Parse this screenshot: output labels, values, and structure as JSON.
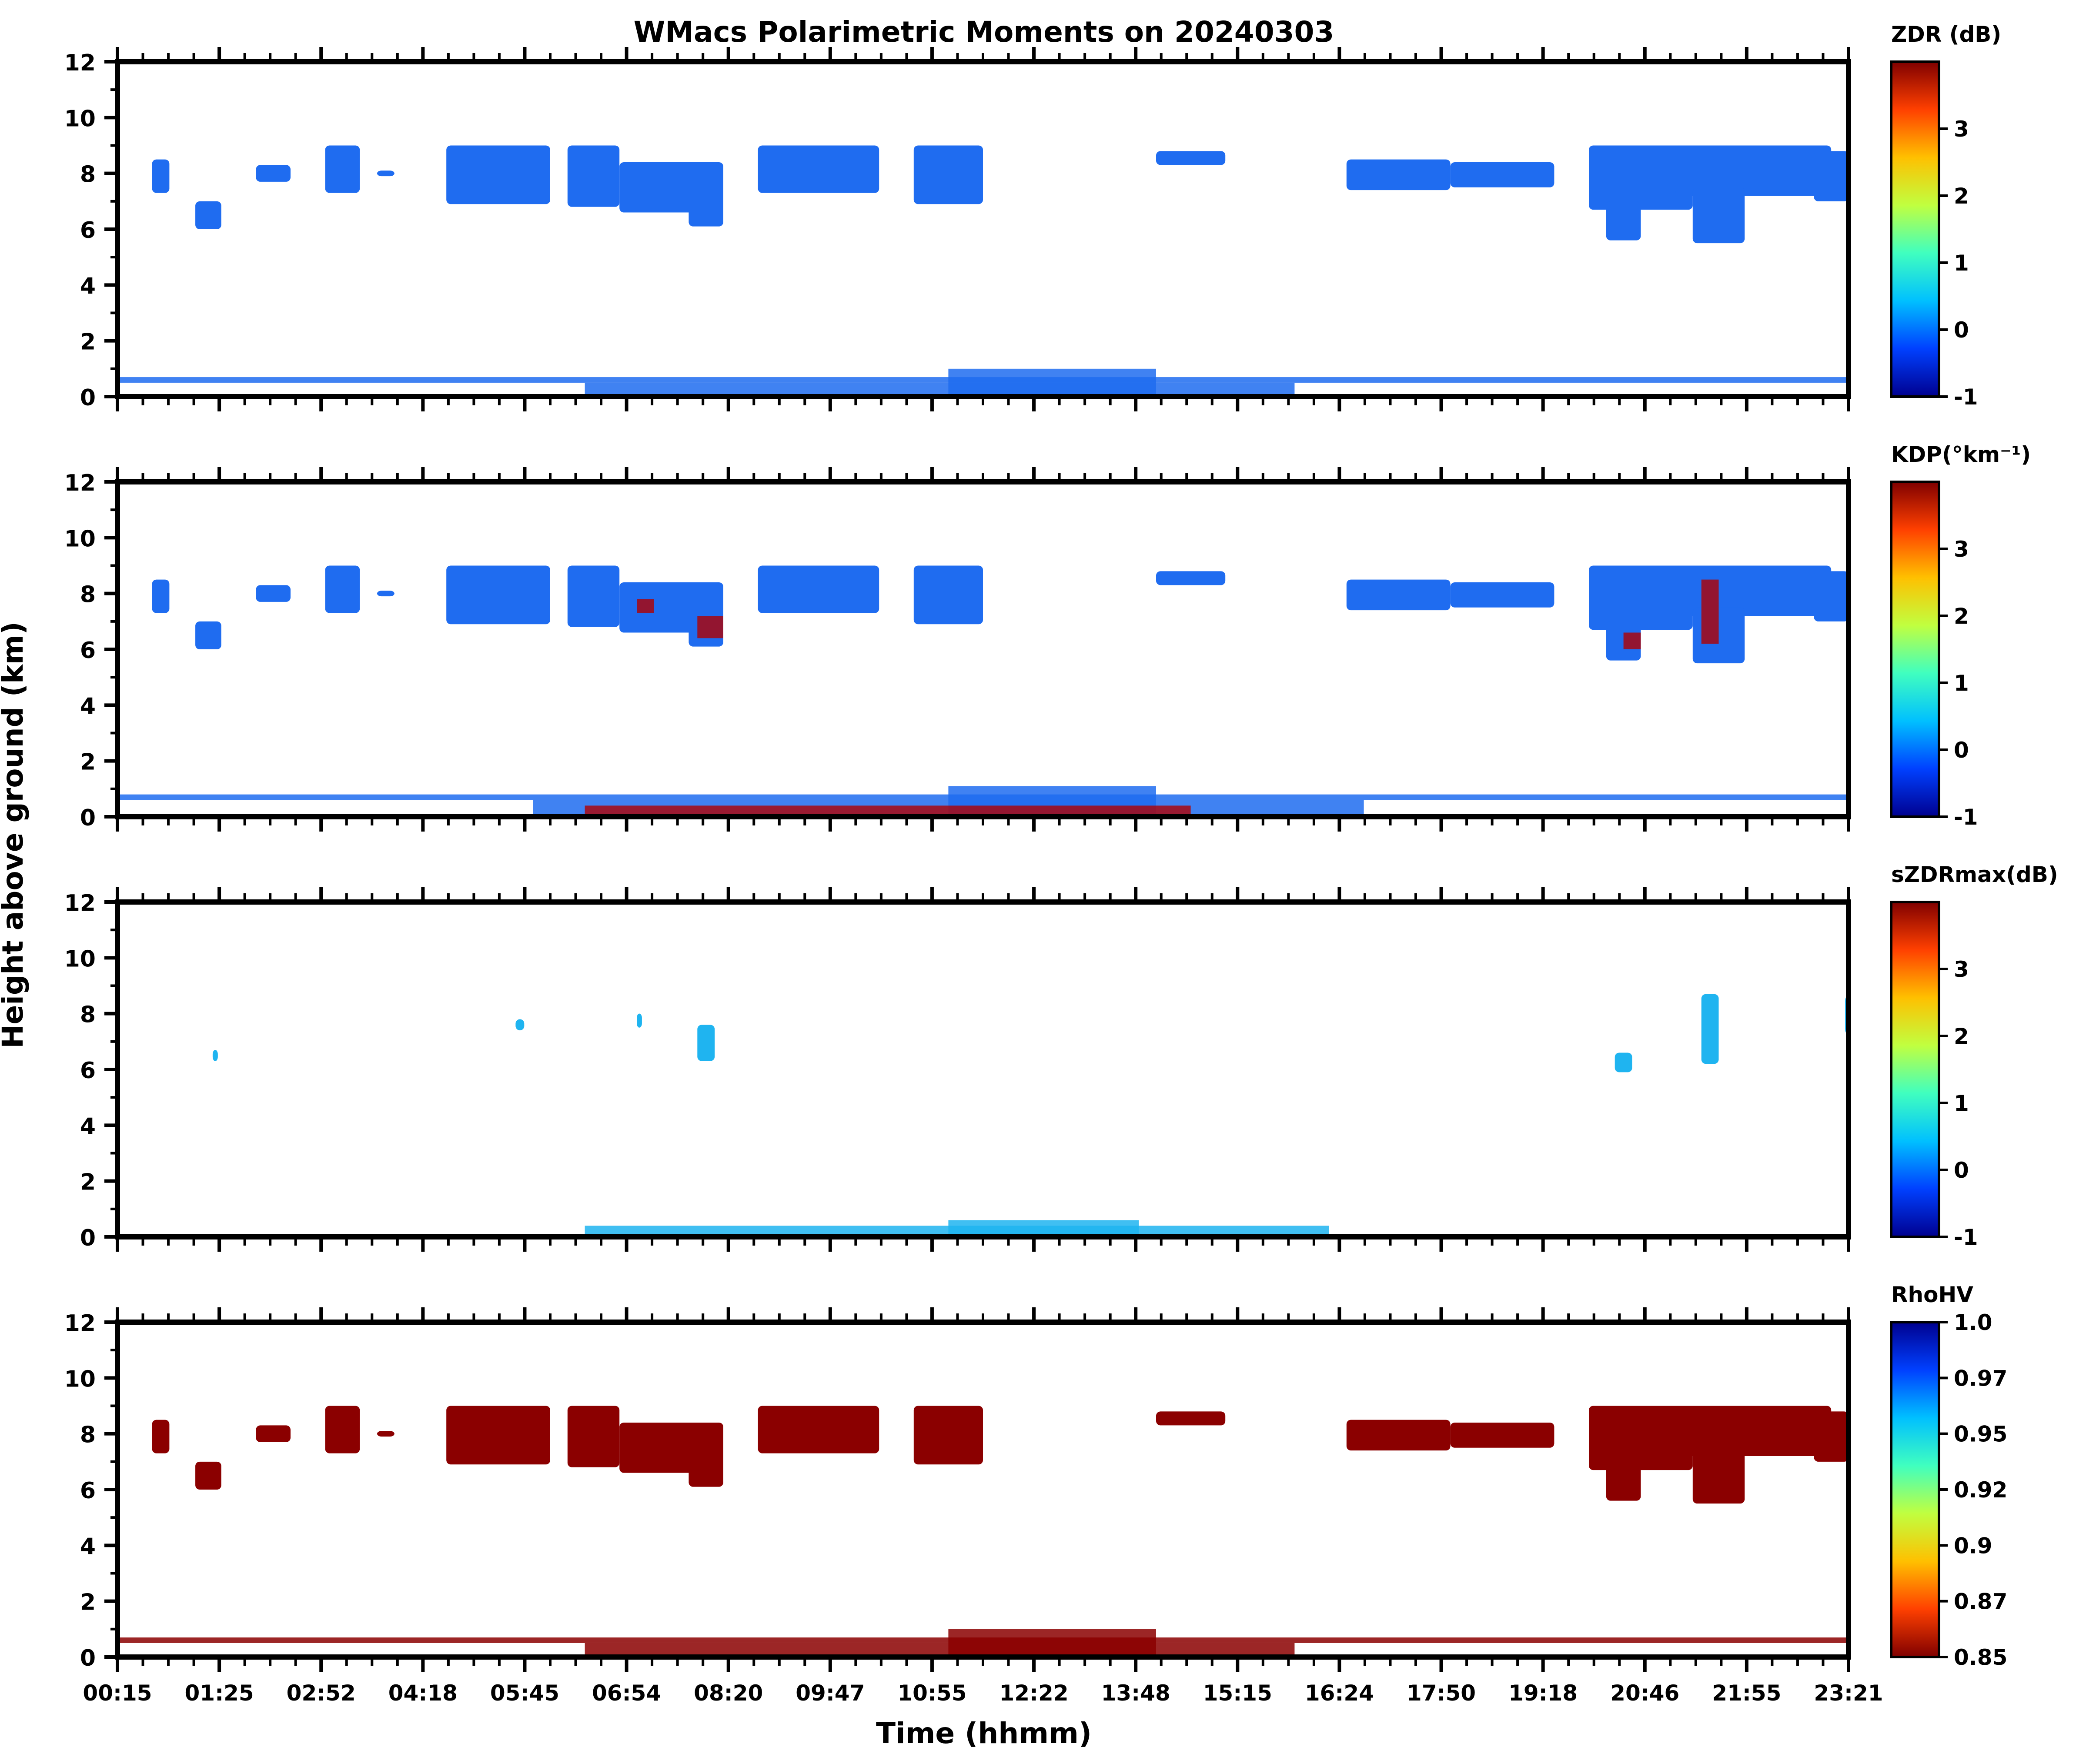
{
  "chart_data": {
    "type": "heatmap",
    "title": "WMacs Polarimetric Moments on 20240303",
    "xlabel": "Time (hhmm)",
    "ylabel": "Height above ground (km)",
    "x_ticklabels": [
      "00:15",
      "01:25",
      "02:52",
      "04:18",
      "05:45",
      "06:54",
      "08:20",
      "09:47",
      "10:55",
      "12:22",
      "13:48",
      "15:15",
      "16:24",
      "17:50",
      "19:18",
      "20:46",
      "21:55",
      "23:21"
    ],
    "y_ticks": [
      0,
      2,
      4,
      6,
      8,
      10,
      12
    ],
    "ylim": [
      0,
      12
    ],
    "panels": [
      {
        "variable": "ZDR",
        "colorbar_label": "ZDR (dB)",
        "colorbar_ticks": [
          "3",
          "2",
          "1",
          "0",
          "-1"
        ],
        "colorbar_range": [
          -1,
          4
        ],
        "colormap": [
          "#00008f",
          "#0040ff",
          "#00c0ff",
          "#40ffbf",
          "#c0ff40",
          "#ffc000",
          "#ff4000",
          "#800000"
        ],
        "echo_color": "#1f6cf0",
        "cloud_regions": [
          {
            "t_start": 0.02,
            "t_end": 0.03,
            "h_bottom": 7.3,
            "h_top": 8.5
          },
          {
            "t_start": 0.045,
            "t_end": 0.06,
            "h_bottom": 6.0,
            "h_top": 7.0
          },
          {
            "t_start": 0.08,
            "t_end": 0.1,
            "h_bottom": 7.7,
            "h_top": 8.3
          },
          {
            "t_start": 0.12,
            "t_end": 0.14,
            "h_bottom": 7.3,
            "h_top": 9.0
          },
          {
            "t_start": 0.15,
            "t_end": 0.16,
            "h_bottom": 7.9,
            "h_top": 8.1
          },
          {
            "t_start": 0.19,
            "t_end": 0.25,
            "h_bottom": 6.9,
            "h_top": 9.0
          },
          {
            "t_start": 0.26,
            "t_end": 0.29,
            "h_bottom": 6.8,
            "h_top": 9.0
          },
          {
            "t_start": 0.29,
            "t_end": 0.35,
            "h_bottom": 6.6,
            "h_top": 8.4
          },
          {
            "t_start": 0.33,
            "t_end": 0.35,
            "h_bottom": 6.1,
            "h_top": 7.0
          },
          {
            "t_start": 0.37,
            "t_end": 0.44,
            "h_bottom": 7.3,
            "h_top": 9.0
          },
          {
            "t_start": 0.46,
            "t_end": 0.5,
            "h_bottom": 6.9,
            "h_top": 9.0
          },
          {
            "t_start": 0.6,
            "t_end": 0.64,
            "h_bottom": 8.3,
            "h_top": 8.8
          },
          {
            "t_start": 0.71,
            "t_end": 0.77,
            "h_bottom": 7.4,
            "h_top": 8.5
          },
          {
            "t_start": 0.77,
            "t_end": 0.83,
            "h_bottom": 7.5,
            "h_top": 8.4
          },
          {
            "t_start": 0.85,
            "t_end": 0.91,
            "h_bottom": 6.7,
            "h_top": 9.0
          },
          {
            "t_start": 0.86,
            "t_end": 0.88,
            "h_bottom": 5.6,
            "h_top": 7.0
          },
          {
            "t_start": 0.9,
            "t_end": 0.99,
            "h_bottom": 7.2,
            "h_top": 9.0
          },
          {
            "t_start": 0.91,
            "t_end": 0.94,
            "h_bottom": 5.5,
            "h_top": 7.5
          },
          {
            "t_start": 0.98,
            "t_end": 1.0,
            "h_bottom": 7.0,
            "h_top": 8.8
          }
        ],
        "near_surface_echo": [
          {
            "t_start": 0.0,
            "t_end": 1.0,
            "h_bottom": 0.5,
            "h_top": 0.7
          },
          {
            "t_start": 0.27,
            "t_end": 0.68,
            "h_bottom": 0.0,
            "h_top": 0.5
          },
          {
            "t_start": 0.48,
            "t_end": 0.6,
            "h_bottom": 0.0,
            "h_top": 1.0
          }
        ]
      },
      {
        "variable": "KDP",
        "colorbar_label": "KDP(°km⁻¹)",
        "colorbar_ticks": [
          "3",
          "2",
          "1",
          "0",
          "-1"
        ],
        "colorbar_range": [
          -1,
          4
        ],
        "colormap": [
          "#00008f",
          "#0040ff",
          "#00c0ff",
          "#40ffbf",
          "#c0ff40",
          "#ffc000",
          "#ff4000",
          "#800000"
        ],
        "echo_color": "#1f6cf0",
        "cloud_regions": [
          {
            "t_start": 0.02,
            "t_end": 0.03,
            "h_bottom": 7.3,
            "h_top": 8.5
          },
          {
            "t_start": 0.045,
            "t_end": 0.06,
            "h_bottom": 6.0,
            "h_top": 7.0
          },
          {
            "t_start": 0.08,
            "t_end": 0.1,
            "h_bottom": 7.7,
            "h_top": 8.3
          },
          {
            "t_start": 0.12,
            "t_end": 0.14,
            "h_bottom": 7.3,
            "h_top": 9.0
          },
          {
            "t_start": 0.15,
            "t_end": 0.16,
            "h_bottom": 7.9,
            "h_top": 8.1
          },
          {
            "t_start": 0.19,
            "t_end": 0.25,
            "h_bottom": 6.9,
            "h_top": 9.0
          },
          {
            "t_start": 0.26,
            "t_end": 0.29,
            "h_bottom": 6.8,
            "h_top": 9.0
          },
          {
            "t_start": 0.29,
            "t_end": 0.35,
            "h_bottom": 6.6,
            "h_top": 8.4
          },
          {
            "t_start": 0.33,
            "t_end": 0.35,
            "h_bottom": 6.1,
            "h_top": 7.0
          },
          {
            "t_start": 0.37,
            "t_end": 0.44,
            "h_bottom": 7.3,
            "h_top": 9.0
          },
          {
            "t_start": 0.46,
            "t_end": 0.5,
            "h_bottom": 6.9,
            "h_top": 9.0
          },
          {
            "t_start": 0.6,
            "t_end": 0.64,
            "h_bottom": 8.3,
            "h_top": 8.8
          },
          {
            "t_start": 0.71,
            "t_end": 0.77,
            "h_bottom": 7.4,
            "h_top": 8.5
          },
          {
            "t_start": 0.77,
            "t_end": 0.83,
            "h_bottom": 7.5,
            "h_top": 8.4
          },
          {
            "t_start": 0.85,
            "t_end": 0.91,
            "h_bottom": 6.7,
            "h_top": 9.0
          },
          {
            "t_start": 0.86,
            "t_end": 0.88,
            "h_bottom": 5.6,
            "h_top": 7.0
          },
          {
            "t_start": 0.9,
            "t_end": 0.99,
            "h_bottom": 7.2,
            "h_top": 9.0
          },
          {
            "t_start": 0.91,
            "t_end": 0.94,
            "h_bottom": 5.5,
            "h_top": 7.5
          },
          {
            "t_start": 0.98,
            "t_end": 1.0,
            "h_bottom": 7.0,
            "h_top": 8.8
          }
        ],
        "near_surface_echo": [
          {
            "t_start": 0.0,
            "t_end": 1.0,
            "h_bottom": 0.6,
            "h_top": 0.8
          },
          {
            "t_start": 0.24,
            "t_end": 0.72,
            "h_bottom": 0.0,
            "h_top": 0.6
          },
          {
            "t_start": 0.48,
            "t_end": 0.6,
            "h_bottom": 0.0,
            "h_top": 1.1
          }
        ],
        "high_value_cells": [
          {
            "t_start": 0.3,
            "t_end": 0.31,
            "h_bottom": 7.3,
            "h_top": 7.8
          },
          {
            "t_start": 0.335,
            "t_end": 0.35,
            "h_bottom": 6.4,
            "h_top": 7.2
          },
          {
            "t_start": 0.87,
            "t_end": 0.88,
            "h_bottom": 6.0,
            "h_top": 6.6
          },
          {
            "t_start": 0.915,
            "t_end": 0.925,
            "h_bottom": 6.2,
            "h_top": 8.5
          },
          {
            "t_start": 0.27,
            "t_end": 0.62,
            "h_bottom": 0.0,
            "h_top": 0.4
          }
        ]
      },
      {
        "variable": "sZDRmax",
        "colorbar_label": "sZDRmax(dB)",
        "colorbar_ticks": [
          "3",
          "2",
          "1",
          "0",
          "-1"
        ],
        "colorbar_range": [
          -1,
          4
        ],
        "colormap": [
          "#00008f",
          "#0040ff",
          "#00c0ff",
          "#40ffbf",
          "#c0ff40",
          "#ffc000",
          "#ff4000",
          "#800000"
        ],
        "echo_color": "#1fb4f0",
        "cloud_regions": [
          {
            "t_start": 0.055,
            "t_end": 0.058,
            "h_bottom": 6.3,
            "h_top": 6.7
          },
          {
            "t_start": 0.23,
            "t_end": 0.235,
            "h_bottom": 7.4,
            "h_top": 7.8
          },
          {
            "t_start": 0.3,
            "t_end": 0.303,
            "h_bottom": 7.5,
            "h_top": 8.0
          },
          {
            "t_start": 0.335,
            "t_end": 0.345,
            "h_bottom": 6.3,
            "h_top": 7.6
          },
          {
            "t_start": 0.865,
            "t_end": 0.875,
            "h_bottom": 5.9,
            "h_top": 6.6
          },
          {
            "t_start": 0.915,
            "t_end": 0.925,
            "h_bottom": 6.2,
            "h_top": 8.7
          },
          {
            "t_start": 0.998,
            "t_end": 1.0,
            "h_bottom": 7.3,
            "h_top": 8.6
          }
        ],
        "near_surface_echo": [
          {
            "t_start": 0.27,
            "t_end": 0.7,
            "h_bottom": 0.0,
            "h_top": 0.4
          },
          {
            "t_start": 0.48,
            "t_end": 0.59,
            "h_bottom": 0.0,
            "h_top": 0.6
          }
        ]
      },
      {
        "variable": "RhoHV",
        "colorbar_label": "RhoHV",
        "colorbar_ticks": [
          "1.0",
          "0.97",
          "0.95",
          "0.92",
          "0.9",
          "0.87",
          "0.85"
        ],
        "colorbar_range": [
          0.85,
          1.0
        ],
        "colormap": [
          "#800000",
          "#ff4000",
          "#ffc000",
          "#c0ff40",
          "#40ffbf",
          "#00c0ff",
          "#0040ff",
          "#00008f"
        ],
        "echo_color": "#8b0000",
        "cloud_regions": [
          {
            "t_start": 0.02,
            "t_end": 0.03,
            "h_bottom": 7.3,
            "h_top": 8.5
          },
          {
            "t_start": 0.045,
            "t_end": 0.06,
            "h_bottom": 6.0,
            "h_top": 7.0
          },
          {
            "t_start": 0.08,
            "t_end": 0.1,
            "h_bottom": 7.7,
            "h_top": 8.3
          },
          {
            "t_start": 0.12,
            "t_end": 0.14,
            "h_bottom": 7.3,
            "h_top": 9.0
          },
          {
            "t_start": 0.15,
            "t_end": 0.16,
            "h_bottom": 7.9,
            "h_top": 8.1
          },
          {
            "t_start": 0.19,
            "t_end": 0.25,
            "h_bottom": 6.9,
            "h_top": 9.0
          },
          {
            "t_start": 0.26,
            "t_end": 0.29,
            "h_bottom": 6.8,
            "h_top": 9.0
          },
          {
            "t_start": 0.29,
            "t_end": 0.35,
            "h_bottom": 6.6,
            "h_top": 8.4
          },
          {
            "t_start": 0.33,
            "t_end": 0.35,
            "h_bottom": 6.1,
            "h_top": 7.0
          },
          {
            "t_start": 0.37,
            "t_end": 0.44,
            "h_bottom": 7.3,
            "h_top": 9.0
          },
          {
            "t_start": 0.46,
            "t_end": 0.5,
            "h_bottom": 6.9,
            "h_top": 9.0
          },
          {
            "t_start": 0.6,
            "t_end": 0.64,
            "h_bottom": 8.3,
            "h_top": 8.8
          },
          {
            "t_start": 0.71,
            "t_end": 0.77,
            "h_bottom": 7.4,
            "h_top": 8.5
          },
          {
            "t_start": 0.77,
            "t_end": 0.83,
            "h_bottom": 7.5,
            "h_top": 8.4
          },
          {
            "t_start": 0.85,
            "t_end": 0.91,
            "h_bottom": 6.7,
            "h_top": 9.0
          },
          {
            "t_start": 0.86,
            "t_end": 0.88,
            "h_bottom": 5.6,
            "h_top": 7.0
          },
          {
            "t_start": 0.9,
            "t_end": 0.99,
            "h_bottom": 7.2,
            "h_top": 9.0
          },
          {
            "t_start": 0.91,
            "t_end": 0.94,
            "h_bottom": 5.5,
            "h_top": 7.5
          },
          {
            "t_start": 0.98,
            "t_end": 1.0,
            "h_bottom": 7.0,
            "h_top": 8.8
          }
        ],
        "near_surface_echo": [
          {
            "t_start": 0.0,
            "t_end": 1.0,
            "h_bottom": 0.5,
            "h_top": 0.7
          },
          {
            "t_start": 0.27,
            "t_end": 0.68,
            "h_bottom": 0.0,
            "h_top": 0.5
          },
          {
            "t_start": 0.48,
            "t_end": 0.6,
            "h_bottom": 0.0,
            "h_top": 1.0
          }
        ]
      }
    ]
  }
}
